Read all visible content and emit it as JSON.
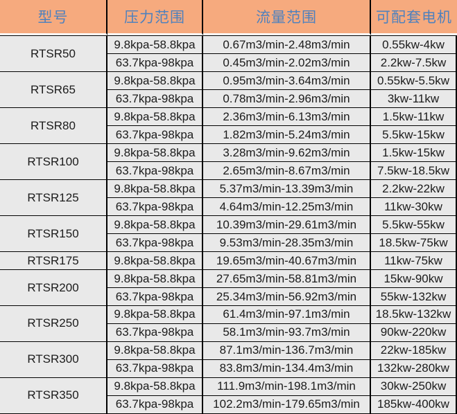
{
  "colors": {
    "header_bg": "#F6AA7E",
    "header_fg": "#4F81BD",
    "cell_bg": "#E9E9E9",
    "cell_fg": "#1B1B1B",
    "grid": "#000000",
    "header_gap": "#FBFBFB"
  },
  "table": {
    "columns": [
      {
        "key": "model",
        "label": "型号"
      },
      {
        "key": "pressure",
        "label": "压力范围"
      },
      {
        "key": "flow",
        "label": "流量范围"
      },
      {
        "key": "motor",
        "label": "可配套电机"
      }
    ],
    "groups": [
      {
        "model": "RTSR50",
        "rows": [
          {
            "pressure": "9.8kpa-58.8kpa",
            "flow": "0.67m3/min-2.48m3/min",
            "motor": "0.55kw-4kw"
          },
          {
            "pressure": "63.7kpa-98kpa",
            "flow": "0.45m3/min-2.02m3/min",
            "motor": "2.2kw-7.5kw"
          }
        ]
      },
      {
        "model": "RTSR65",
        "rows": [
          {
            "pressure": "9.8kpa-58.8kpa",
            "flow": "0.95m3/min-3.64m3/min",
            "motor": "0.55kw-5.5kw"
          },
          {
            "pressure": "63.7kpa-98kpa",
            "flow": "0.78m3/min-2.96m3/min",
            "motor": "3kw-11kw"
          }
        ]
      },
      {
        "model": "RTSR80",
        "rows": [
          {
            "pressure": "9.8kpa-58.8kpa",
            "flow": "2.36m3/min-6.13m3/min",
            "motor": "1.5kw-11kw"
          },
          {
            "pressure": "63.7kpa-98kpa",
            "flow": "1.82m3/min-5.24m3/min",
            "motor": "5.5kw-15kw"
          }
        ]
      },
      {
        "model": "RTSR100",
        "rows": [
          {
            "pressure": "9.8kpa-58.8kpa",
            "flow": "3.28m3/min-9.62m3/min",
            "motor": "1.5kw-15kw"
          },
          {
            "pressure": "63.7kpa-98kpa",
            "flow": "2.65m3/min-8.67m3/min",
            "motor": "7.5kw-18.5kw"
          }
        ]
      },
      {
        "model": "RTSR125",
        "rows": [
          {
            "pressure": "9.8kpa-58.8kpa",
            "flow": "5.37m3/min-13.39m3/min",
            "motor": "2.2kw-22kw"
          },
          {
            "pressure": "63.7kpa-98kpa",
            "flow": "4.64m3/min-12.25m3/min",
            "motor": "11kw-30kw"
          }
        ]
      },
      {
        "model": "RTSR150",
        "rows": [
          {
            "pressure": "9.8kpa-58.8kpa",
            "flow": "10.39m3/min-29.61m3/min",
            "motor": "5.5kw-55kw"
          },
          {
            "pressure": "63.7kpa-98kpa",
            "flow": "9.53m3/min-28.35m3/min",
            "motor": "18.5kw-75kw"
          }
        ]
      },
      {
        "model": "RTSR175",
        "rows": [
          {
            "pressure": "9.8kpa-58.8kpa",
            "flow": "19.65m3/min-40.67m3/min",
            "motor": "11kw-75kw"
          }
        ]
      },
      {
        "model": "RTSR200",
        "rows": [
          {
            "pressure": "9.8kpa-58.8kpa",
            "flow": "27.65m3/min-58.81m3/min",
            "motor": "15kw-90kw"
          },
          {
            "pressure": "63.7kpa-98kpa",
            "flow": "25.34m3/min-56.92m3/min",
            "motor": "55kw-132kw"
          }
        ]
      },
      {
        "model": "RTSR250",
        "rows": [
          {
            "pressure": "9.8kpa-58.8kpa",
            "flow": "61.4m3/min-97.1m3/min",
            "motor": "18.5kw-132kw"
          },
          {
            "pressure": "63.7kpa-98kpa",
            "flow": "58.1m3/min-93.7m3/min",
            "motor": "90kw-220kw"
          }
        ]
      },
      {
        "model": "RTSR300",
        "rows": [
          {
            "pressure": "9.8kpa-58.8kpa",
            "flow": "87.1m3/min-136.7m3/min",
            "motor": "22kw-185kw"
          },
          {
            "pressure": "63.7kpa-98kpa",
            "flow": "83.8m3/min-134.4m3/min",
            "motor": "132kw-280kw"
          }
        ]
      },
      {
        "model": "RTSR350",
        "rows": [
          {
            "pressure": "9.8kpa-58.8kpa",
            "flow": "111.9m3/min-198.1m3/min",
            "motor": "30kw-250kw"
          },
          {
            "pressure": "63.7kpa-98kpa",
            "flow": "102.2m3/min-179.65m3/min",
            "motor": "185kw-400kw"
          }
        ]
      }
    ]
  }
}
